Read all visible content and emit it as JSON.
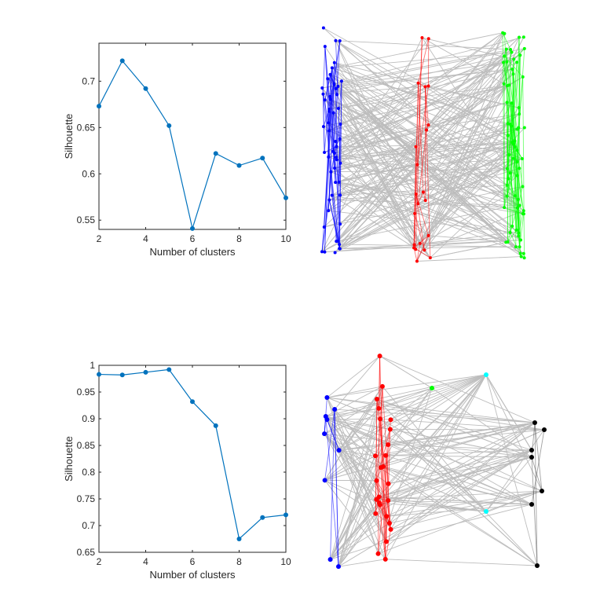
{
  "chart_data": [
    {
      "type": "line",
      "xlabel": "Number of clusters",
      "ylabel": "Silhouette",
      "x": [
        2,
        3,
        4,
        5,
        6,
        7,
        8,
        9,
        10
      ],
      "values": [
        0.673,
        0.722,
        0.692,
        0.652,
        0.541,
        0.622,
        0.609,
        0.617,
        0.574
      ],
      "xlim": [
        2,
        10
      ],
      "ylim": [
        0.54,
        0.741
      ],
      "xticks": [
        "2",
        "4",
        "6",
        "8",
        "10"
      ],
      "yticks": [
        "0.55",
        "0.6",
        "0.65",
        "0.7"
      ],
      "grid": false,
      "color": "#0072BD"
    },
    {
      "type": "line",
      "xlabel": "Number of clusters",
      "ylabel": "Silhouette",
      "x": [
        2,
        3,
        4,
        5,
        6,
        7,
        8,
        9,
        10
      ],
      "values": [
        0.983,
        0.982,
        0.987,
        0.992,
        0.932,
        0.887,
        0.675,
        0.715,
        0.72
      ],
      "xlim": [
        2,
        10
      ],
      "ylim": [
        0.65,
        1
      ],
      "xticks": [
        "2",
        "4",
        "6",
        "8",
        "10"
      ],
      "yticks": [
        "0.65",
        "0.7",
        "0.75",
        "0.8",
        "0.85",
        "0.9",
        "0.95",
        "1"
      ],
      "grid": false,
      "color": "#0072BD"
    }
  ],
  "graphs": [
    {
      "type": "network",
      "clusters": [
        "blue",
        "red",
        "green"
      ],
      "colors": {
        "blue": "#0000ff",
        "red": "#ff0000",
        "green": "#00ff00"
      },
      "edge_color": "#bdbdbd"
    },
    {
      "type": "network",
      "clusters": [
        "blue",
        "red",
        "green",
        "cyan",
        "black"
      ],
      "colors": {
        "blue": "#0000ff",
        "red": "#ff0000",
        "green": "#00ff00",
        "cyan": "#00ffff",
        "black": "#000000"
      },
      "edge_color": "#bdbdbd"
    }
  ]
}
